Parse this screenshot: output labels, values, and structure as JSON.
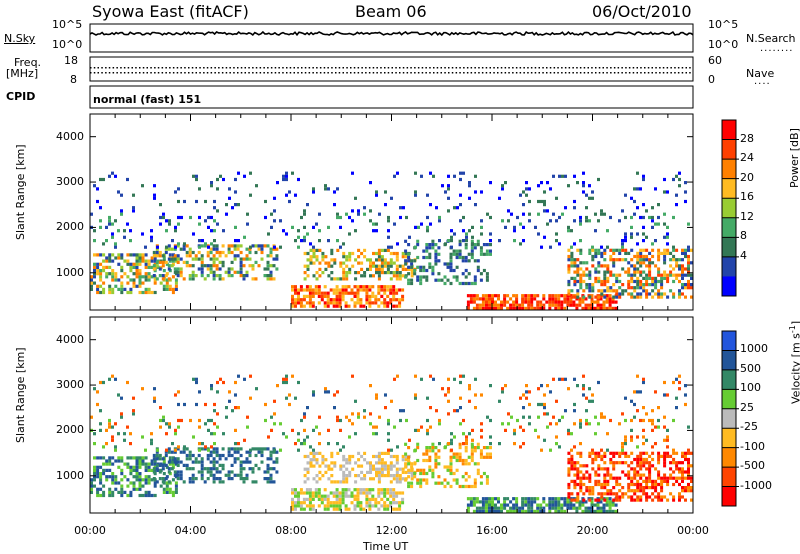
{
  "header": {
    "station": "Syowa East (fitACF)",
    "beam": "Beam 06",
    "date": "06/Oct/2010"
  },
  "top_panels": {
    "nsky_label": "N.Sky",
    "nsky_ticks": [
      "10^5",
      "10^0"
    ],
    "nsearch_label": "N.Search",
    "nsearch_ticks": [
      "10^5",
      "10^0"
    ],
    "freq_label_line1": "Freq.",
    "freq_label_line2": "[MHz]",
    "freq_ticks": [
      "18",
      "8"
    ],
    "nave_label": "Nave",
    "nave_ticks": [
      "60",
      "0"
    ],
    "cpid_label": "CPID",
    "cpid_value": "normal (fast) 151"
  },
  "chart_data": [
    {
      "type": "heatmap",
      "name": "power",
      "ylabel": "Slant Range [km]",
      "yticks": [
        "1000",
        "2000",
        "3000",
        "4000"
      ],
      "ylim": [
        180,
        4500
      ],
      "xlim_hours": [
        0,
        24
      ],
      "colorbar_label": "Power [dB]",
      "colorbar_ticks": [
        "28",
        "24",
        "20",
        "16",
        "12",
        "8",
        "4"
      ],
      "colorbar_colors": [
        "#ff0000",
        "#ff4000",
        "#ff8000",
        "#ffbb22",
        "#99cc33",
        "#44aa66",
        "#337755",
        "#2244aa",
        "#0000ff"
      ]
    },
    {
      "type": "heatmap",
      "name": "velocity",
      "ylabel": "Slant Range [km]",
      "yticks": [
        "1000",
        "2000",
        "3000",
        "4000"
      ],
      "ylim": [
        180,
        4500
      ],
      "xlim_hours": [
        0,
        24
      ],
      "xlabel": "Time UT",
      "xticks": [
        "00:00",
        "04:00",
        "08:00",
        "12:00",
        "16:00",
        "20:00",
        "00:00"
      ],
      "colorbar_label": "Velocity [m s",
      "colorbar_label_sup": "-1",
      "colorbar_label_end": "]",
      "colorbar_ticks": [
        "1000",
        "500",
        "100",
        "25",
        "-25",
        "-100",
        "-500",
        "-1000"
      ],
      "colorbar_colors": [
        "#2255dd",
        "#225599",
        "#338866",
        "#66cc33",
        "#bbbbbb",
        "#ffbb22",
        "#ff8800",
        "#ff4400",
        "#ff0000"
      ]
    }
  ]
}
